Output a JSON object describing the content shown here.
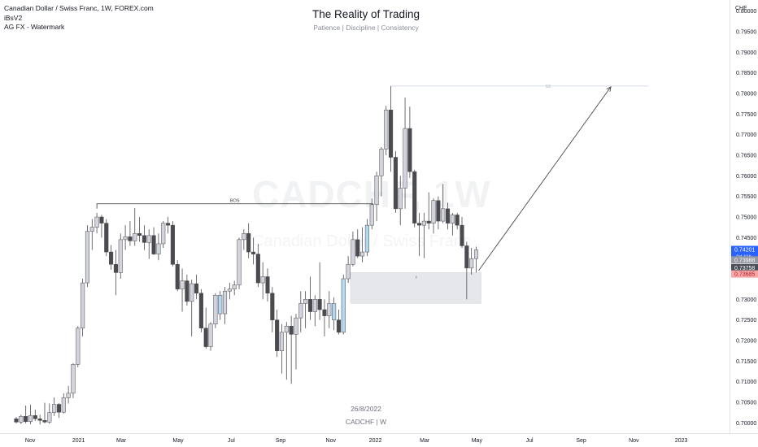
{
  "legend": {
    "line1": "Canadian Dollar / Swiss Franc, 1W, FOREX.com",
    "line2": "iBsV2",
    "line3": "AG FX - Watermark"
  },
  "header": {
    "title": "The Reality of Trading",
    "subtitle": "Patience | Discipline | Consistency"
  },
  "footer": {
    "date": "26/8/2022",
    "symbol": "CADCHF | W"
  },
  "watermark": {
    "symbol": "CADCHF, 1W",
    "sub": "Canadian Dollar / Swiss Franc"
  },
  "price_axis": {
    "currency": "CHF",
    "labels": [
      "0.80000",
      "0.79500",
      "0.79000",
      "0.78500",
      "0.78000",
      "0.77500",
      "0.77000",
      "0.76500",
      "0.76000",
      "0.75500",
      "0.75000",
      "0.74500",
      "0.73000",
      "0.72500",
      "0.72000",
      "0.71500",
      "0.71000",
      "0.70500",
      "0.70000"
    ],
    "badges": [
      {
        "text": "0.74201",
        "sub": "3d 11h",
        "bg": "#2962ff",
        "fg": "#ffffff"
      },
      {
        "text": "0.73988",
        "bg": "#9598a1",
        "fg": "#ffffff"
      },
      {
        "text": "0.73758",
        "bg": "#4a4e59",
        "fg": "#ffffff"
      },
      {
        "text": "0.73685",
        "bg": "#f7a5a5",
        "fg": "#b22833"
      }
    ]
  },
  "time_axis": [
    "Nov",
    "2021",
    "Mar",
    "May",
    "Jul",
    "Sep",
    "Nov",
    "2022",
    "Mar",
    "May",
    "Jul",
    "Sep",
    "Nov",
    "2023"
  ],
  "annotations": {
    "bos": "BOS",
    "ss": "SS",
    "zone_mark": "x"
  },
  "colors": {
    "bull": "#d1d4dc",
    "bear": "#4a4a4f",
    "highlight": "#b3d9f2",
    "wick": "#4a4a4f",
    "zone": "#e6e7ea",
    "bos_line": "#333333",
    "ss_line": "#c5cfe0",
    "arrow": "#4a4a4f"
  },
  "chart_data": {
    "type": "candlestick",
    "symbol": "CADCHF",
    "interval": "1W",
    "y_range": [
      0.6975,
      0.8025
    ],
    "candles": [
      {
        "o": 0.701,
        "h": 0.7014,
        "l": 0.6999,
        "c": 0.7002
      },
      {
        "o": 0.7002,
        "h": 0.702,
        "l": 0.6997,
        "c": 0.7016
      },
      {
        "o": 0.7016,
        "h": 0.7042,
        "l": 0.6999,
        "c": 0.7003
      },
      {
        "o": 0.7003,
        "h": 0.7044,
        "l": 0.6997,
        "c": 0.7018
      },
      {
        "o": 0.7018,
        "h": 0.7032,
        "l": 0.7005,
        "c": 0.701
      },
      {
        "o": 0.701,
        "h": 0.702,
        "l": 0.6996,
        "c": 0.7006
      },
      {
        "o": 0.7006,
        "h": 0.7049,
        "l": 0.6999,
        "c": 0.7002
      },
      {
        "o": 0.7002,
        "h": 0.7047,
        "l": 0.6998,
        "c": 0.7025
      },
      {
        "o": 0.7025,
        "h": 0.7062,
        "l": 0.7017,
        "c": 0.7045
      },
      {
        "o": 0.7045,
        "h": 0.7048,
        "l": 0.7012,
        "c": 0.7026
      },
      {
        "o": 0.7026,
        "h": 0.7072,
        "l": 0.7023,
        "c": 0.7061
      },
      {
        "o": 0.7061,
        "h": 0.709,
        "l": 0.7047,
        "c": 0.7072
      },
      {
        "o": 0.7072,
        "h": 0.7145,
        "l": 0.706,
        "c": 0.7142
      },
      {
        "o": 0.7142,
        "h": 0.7235,
        "l": 0.7135,
        "c": 0.723
      },
      {
        "o": 0.723,
        "h": 0.735,
        "l": 0.721,
        "c": 0.734
      },
      {
        "o": 0.734,
        "h": 0.748,
        "l": 0.733,
        "c": 0.7465
      },
      {
        "o": 0.7465,
        "h": 0.7495,
        "l": 0.742,
        "c": 0.7475
      },
      {
        "o": 0.7475,
        "h": 0.751,
        "l": 0.746,
        "c": 0.75
      },
      {
        "o": 0.75,
        "h": 0.7505,
        "l": 0.745,
        "c": 0.7485
      },
      {
        "o": 0.7485,
        "h": 0.7495,
        "l": 0.7405,
        "c": 0.7415
      },
      {
        "o": 0.7415,
        "h": 0.7432,
        "l": 0.7372,
        "c": 0.7385
      },
      {
        "o": 0.7385,
        "h": 0.742,
        "l": 0.731,
        "c": 0.7365
      },
      {
        "o": 0.7365,
        "h": 0.746,
        "l": 0.735,
        "c": 0.7445
      },
      {
        "o": 0.7445,
        "h": 0.748,
        "l": 0.742,
        "c": 0.7452
      },
      {
        "o": 0.7452,
        "h": 0.749,
        "l": 0.743,
        "c": 0.7442
      },
      {
        "o": 0.7442,
        "h": 0.7522,
        "l": 0.743,
        "c": 0.746
      },
      {
        "o": 0.746,
        "h": 0.75,
        "l": 0.744,
        "c": 0.7455
      },
      {
        "o": 0.7455,
        "h": 0.748,
        "l": 0.742,
        "c": 0.7438
      },
      {
        "o": 0.7438,
        "h": 0.747,
        "l": 0.7398,
        "c": 0.7455
      },
      {
        "o": 0.7455,
        "h": 0.7475,
        "l": 0.7408,
        "c": 0.741
      },
      {
        "o": 0.741,
        "h": 0.746,
        "l": 0.7395,
        "c": 0.7435
      },
      {
        "o": 0.7435,
        "h": 0.749,
        "l": 0.7425,
        "c": 0.7485
      },
      {
        "o": 0.7485,
        "h": 0.75,
        "l": 0.746,
        "c": 0.748
      },
      {
        "o": 0.748,
        "h": 0.749,
        "l": 0.738,
        "c": 0.7385
      },
      {
        "o": 0.7385,
        "h": 0.7395,
        "l": 0.732,
        "c": 0.7325
      },
      {
        "o": 0.7325,
        "h": 0.7375,
        "l": 0.727,
        "c": 0.7345
      },
      {
        "o": 0.7345,
        "h": 0.736,
        "l": 0.7285,
        "c": 0.7295
      },
      {
        "o": 0.7295,
        "h": 0.7348,
        "l": 0.721,
        "c": 0.7338
      },
      {
        "o": 0.7338,
        "h": 0.736,
        "l": 0.73,
        "c": 0.7315
      },
      {
        "o": 0.7315,
        "h": 0.7325,
        "l": 0.722,
        "c": 0.723
      },
      {
        "o": 0.723,
        "h": 0.728,
        "l": 0.718,
        "c": 0.7185
      },
      {
        "o": 0.7185,
        "h": 0.7245,
        "l": 0.7175,
        "c": 0.724
      },
      {
        "o": 0.724,
        "h": 0.7315,
        "l": 0.723,
        "c": 0.731
      },
      {
        "o": 0.731,
        "h": 0.732,
        "l": 0.725,
        "c": 0.7265
      },
      {
        "o": 0.7265,
        "h": 0.733,
        "l": 0.724,
        "c": 0.732
      },
      {
        "o": 0.732,
        "h": 0.734,
        "l": 0.73,
        "c": 0.7325
      },
      {
        "o": 0.7325,
        "h": 0.7345,
        "l": 0.731,
        "c": 0.7335
      },
      {
        "o": 0.7335,
        "h": 0.745,
        "l": 0.7325,
        "c": 0.7445
      },
      {
        "o": 0.7445,
        "h": 0.747,
        "l": 0.742,
        "c": 0.746
      },
      {
        "o": 0.746,
        "h": 0.7485,
        "l": 0.74,
        "c": 0.7415
      },
      {
        "o": 0.7415,
        "h": 0.745,
        "l": 0.7385,
        "c": 0.741
      },
      {
        "o": 0.741,
        "h": 0.7435,
        "l": 0.733,
        "c": 0.734
      },
      {
        "o": 0.734,
        "h": 0.739,
        "l": 0.73,
        "c": 0.7355
      },
      {
        "o": 0.7355,
        "h": 0.7375,
        "l": 0.7295,
        "c": 0.7315
      },
      {
        "o": 0.7315,
        "h": 0.733,
        "l": 0.722,
        "c": 0.725
      },
      {
        "o": 0.725,
        "h": 0.7275,
        "l": 0.716,
        "c": 0.7175
      },
      {
        "o": 0.7175,
        "h": 0.724,
        "l": 0.712,
        "c": 0.722
      },
      {
        "o": 0.722,
        "h": 0.7245,
        "l": 0.7105,
        "c": 0.7235
      },
      {
        "o": 0.7235,
        "h": 0.726,
        "l": 0.7095,
        "c": 0.7215
      },
      {
        "o": 0.7215,
        "h": 0.7265,
        "l": 0.713,
        "c": 0.7255
      },
      {
        "o": 0.7255,
        "h": 0.732,
        "l": 0.722,
        "c": 0.729
      },
      {
        "o": 0.729,
        "h": 0.732,
        "l": 0.723,
        "c": 0.73
      },
      {
        "o": 0.73,
        "h": 0.7355,
        "l": 0.725,
        "c": 0.727
      },
      {
        "o": 0.727,
        "h": 0.731,
        "l": 0.7235,
        "c": 0.73
      },
      {
        "o": 0.73,
        "h": 0.739,
        "l": 0.725,
        "c": 0.7275
      },
      {
        "o": 0.7275,
        "h": 0.73,
        "l": 0.721,
        "c": 0.726
      },
      {
        "o": 0.726,
        "h": 0.732,
        "l": 0.723,
        "c": 0.729
      },
      {
        "o": 0.729,
        "h": 0.7305,
        "l": 0.7225,
        "c": 0.725
      },
      {
        "o": 0.725,
        "h": 0.7275,
        "l": 0.7215,
        "c": 0.722
      },
      {
        "o": 0.722,
        "h": 0.736,
        "l": 0.7215,
        "c": 0.735
      },
      {
        "o": 0.735,
        "h": 0.7405,
        "l": 0.734,
        "c": 0.7385
      },
      {
        "o": 0.7385,
        "h": 0.7465,
        "l": 0.738,
        "c": 0.7445
      },
      {
        "o": 0.7445,
        "h": 0.747,
        "l": 0.74,
        "c": 0.7405
      },
      {
        "o": 0.7405,
        "h": 0.7475,
        "l": 0.739,
        "c": 0.7415
      },
      {
        "o": 0.7415,
        "h": 0.7495,
        "l": 0.7405,
        "c": 0.748
      },
      {
        "o": 0.748,
        "h": 0.7545,
        "l": 0.747,
        "c": 0.753
      },
      {
        "o": 0.753,
        "h": 0.761,
        "l": 0.749,
        "c": 0.76
      },
      {
        "o": 0.76,
        "h": 0.767,
        "l": 0.755,
        "c": 0.7665
      },
      {
        "o": 0.7665,
        "h": 0.777,
        "l": 0.765,
        "c": 0.776
      },
      {
        "o": 0.776,
        "h": 0.7818,
        "l": 0.761,
        "c": 0.7645
      },
      {
        "o": 0.7645,
        "h": 0.766,
        "l": 0.751,
        "c": 0.752
      },
      {
        "o": 0.752,
        "h": 0.76,
        "l": 0.748,
        "c": 0.757
      },
      {
        "o": 0.757,
        "h": 0.779,
        "l": 0.752,
        "c": 0.7715
      },
      {
        "o": 0.7715,
        "h": 0.7768,
        "l": 0.7595,
        "c": 0.761
      },
      {
        "o": 0.761,
        "h": 0.7615,
        "l": 0.7475,
        "c": 0.7485
      },
      {
        "o": 0.7485,
        "h": 0.751,
        "l": 0.7405,
        "c": 0.748
      },
      {
        "o": 0.748,
        "h": 0.751,
        "l": 0.74,
        "c": 0.749
      },
      {
        "o": 0.749,
        "h": 0.756,
        "l": 0.747,
        "c": 0.7485
      },
      {
        "o": 0.7485,
        "h": 0.7545,
        "l": 0.746,
        "c": 0.754
      },
      {
        "o": 0.754,
        "h": 0.755,
        "l": 0.747,
        "c": 0.749
      },
      {
        "o": 0.749,
        "h": 0.758,
        "l": 0.7485,
        "c": 0.752
      },
      {
        "o": 0.752,
        "h": 0.7535,
        "l": 0.747,
        "c": 0.7485
      },
      {
        "o": 0.7485,
        "h": 0.751,
        "l": 0.7455,
        "c": 0.7505
      },
      {
        "o": 0.7505,
        "h": 0.751,
        "l": 0.747,
        "c": 0.748
      },
      {
        "o": 0.748,
        "h": 0.75,
        "l": 0.7425,
        "c": 0.743
      },
      {
        "o": 0.743,
        "h": 0.744,
        "l": 0.73,
        "c": 0.7376
      },
      {
        "o": 0.7376,
        "h": 0.7425,
        "l": 0.736,
        "c": 0.7399
      },
      {
        "o": 0.7399,
        "h": 0.7428,
        "l": 0.7365,
        "c": 0.742
      }
    ],
    "highlight_candles": [
      43,
      67,
      69,
      74
    ],
    "x_ticks": [
      "Nov",
      "2021",
      "Mar",
      "May",
      "Jul",
      "Sep",
      "Nov",
      "2022",
      "Mar",
      "May",
      "Jul",
      "Sep",
      "Nov",
      "2023"
    ],
    "annotations": [
      {
        "type": "hline",
        "label": "BOS",
        "y": 0.7532
      },
      {
        "type": "hline",
        "label": "SS",
        "y": 0.7818
      },
      {
        "type": "zone",
        "y_top": 0.7365,
        "y_bottom": 0.729
      },
      {
        "type": "arrow",
        "from_y": 0.737,
        "to_y": 0.7818
      }
    ]
  }
}
